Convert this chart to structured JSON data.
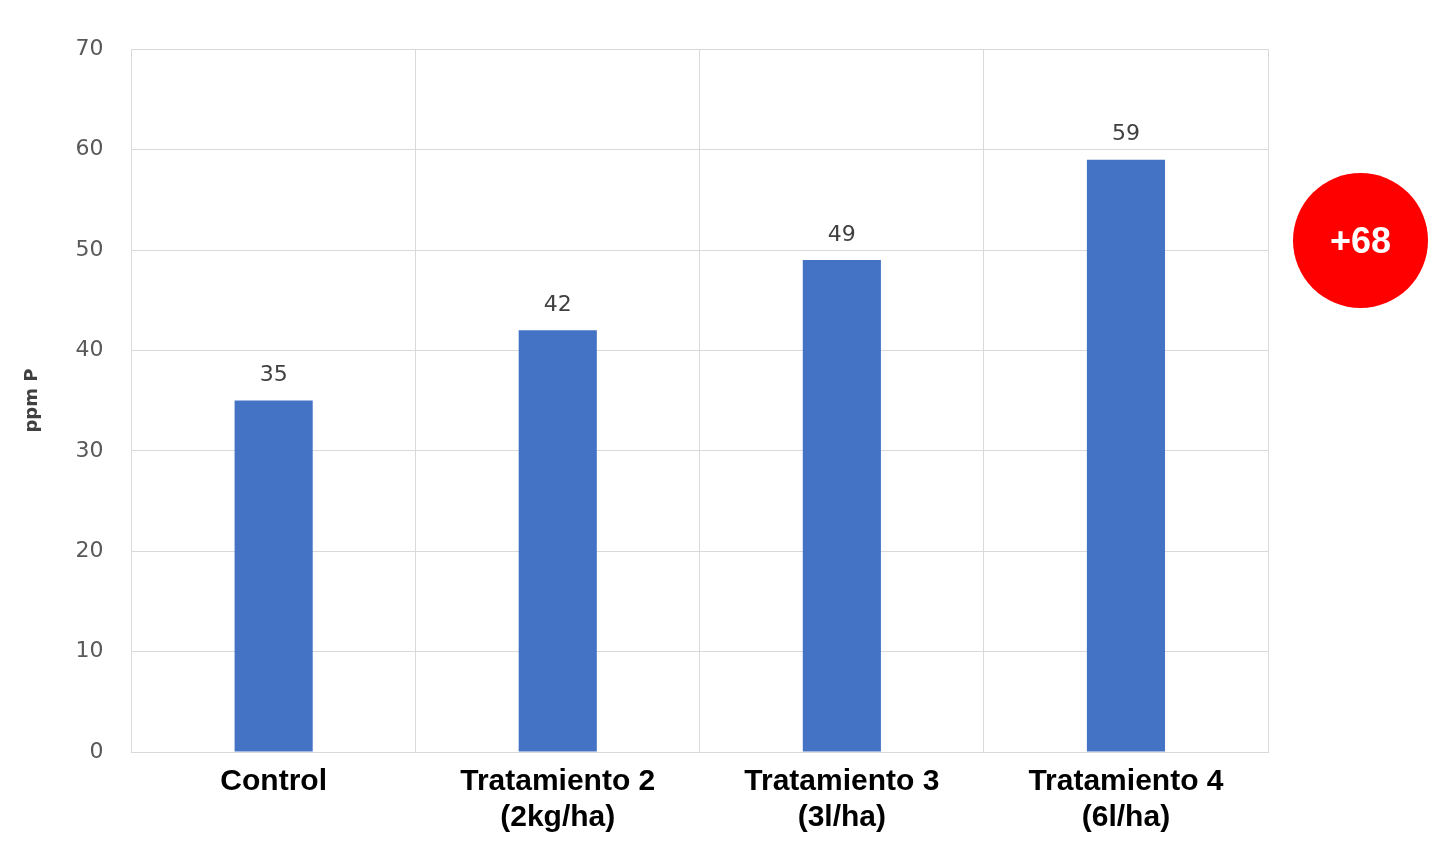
{
  "chart_data": {
    "type": "bar",
    "ylabel": "ppm P",
    "categories": [
      "Control",
      "Tratamiento 2\n(2kg/ha)",
      "Tratamiento 3\n(3l/ha)",
      "Tratamiento 4\n(6l/ha)"
    ],
    "values": [
      35,
      42,
      49,
      59
    ],
    "color": "#4472c4",
    "ylim": [
      0,
      70
    ],
    "yticks": [
      0,
      10,
      20,
      30,
      40,
      50,
      60,
      70
    ],
    "grid": true,
    "data_labels": true,
    "annotations": [
      "+68"
    ]
  }
}
